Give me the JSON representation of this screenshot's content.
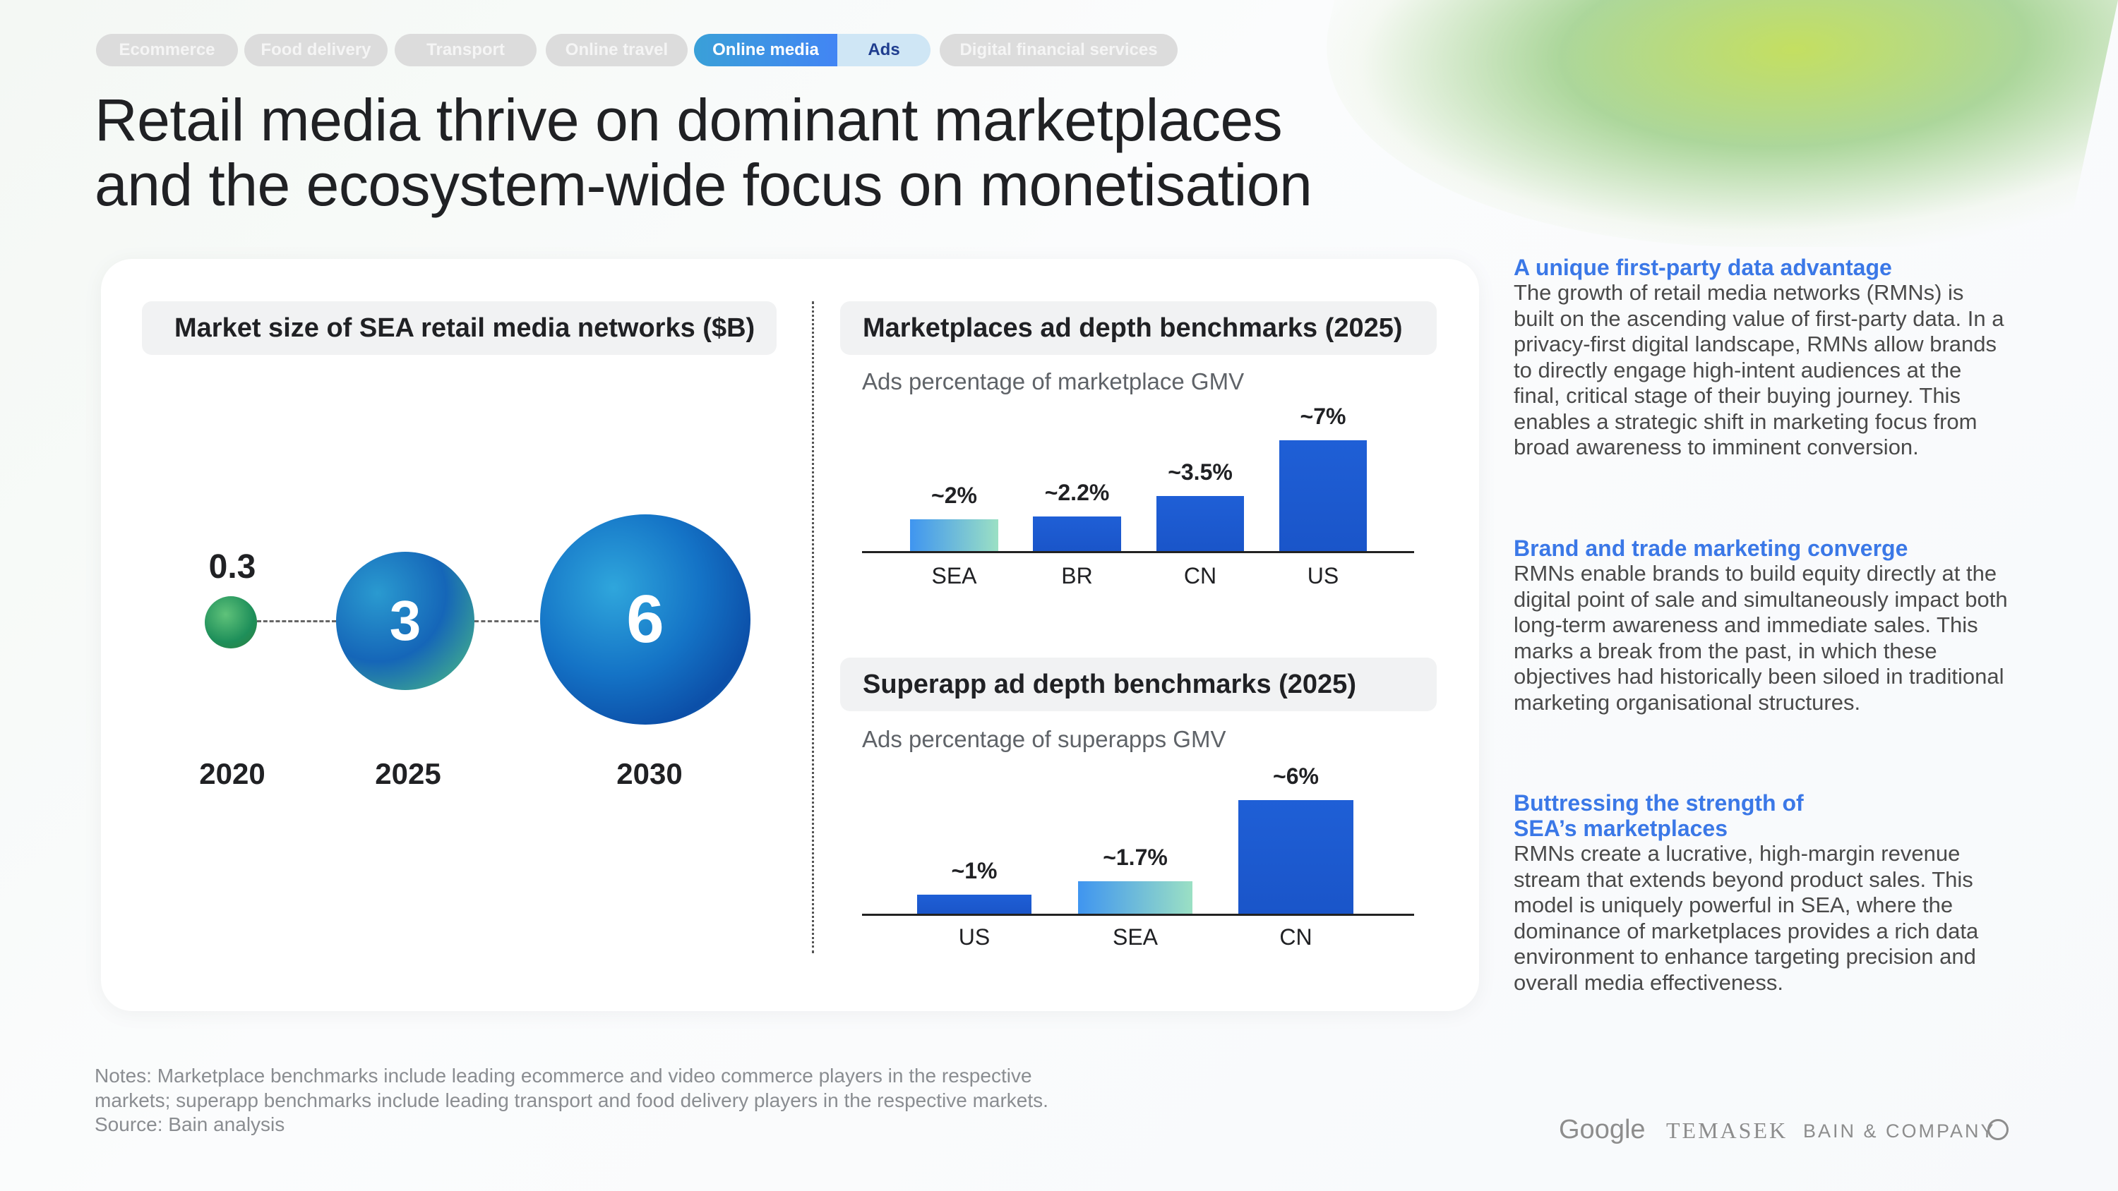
{
  "tabs": [
    {
      "label": "Ecommerce"
    },
    {
      "label": "Food delivery"
    },
    {
      "label": "Transport"
    },
    {
      "label": "Online travel"
    },
    {
      "label": "Online media",
      "active": true
    },
    {
      "label": "Ads",
      "subactive": true
    },
    {
      "label": "Digital financial services"
    }
  ],
  "title": {
    "line1": "Retail media thrive on dominant marketplaces",
    "line2": "and the ecosystem-wide focus on monetisation"
  },
  "market": {
    "title": "Market size of SEA retail media networks ($B)",
    "points": [
      {
        "year": "2020",
        "value": "0.3"
      },
      {
        "year": "2025",
        "value": "3"
      },
      {
        "year": "2030",
        "value": "6"
      }
    ]
  },
  "chart_data": [
    {
      "type": "bar",
      "title": "Marketplaces ad depth benchmarks (2025)",
      "subtitle": "Ads percentage of marketplace GMV",
      "categories": [
        "SEA",
        "BR",
        "CN",
        "US"
      ],
      "values": [
        2,
        2.2,
        3.5,
        7
      ],
      "labels": [
        "~2%",
        "~2.2%",
        "~3.5%",
        "~7%"
      ],
      "highlight": "SEA"
    },
    {
      "type": "bar",
      "title": "Superapp ad depth benchmarks (2025)",
      "subtitle": "Ads percentage of superapps GMV",
      "categories": [
        "US",
        "SEA",
        "CN"
      ],
      "values": [
        1,
        1.7,
        6
      ],
      "labels": [
        "~1%",
        "~1.7%",
        "~6%"
      ],
      "highlight": "SEA"
    }
  ],
  "sections": [
    {
      "heading": "A unique first-party data advantage",
      "body": "The growth of retail media networks (RMNs) is built on the ascending value of first-party data. In a privacy-first digital landscape, RMNs allow brands to directly engage high-intent audiences at the final, critical stage of their buying journey. This enables a strategic shift in marketing focus from broad awareness to imminent conversion."
    },
    {
      "heading": "Brand and trade marketing converge",
      "body": "RMNs enable brands to build equity directly at the digital point of sale and simultaneously impact both long-term awareness and immediate sales. This marks a break from the past, in which these objectives had historically been siloed in traditional marketing organisational structures."
    },
    {
      "heading": "Buttressing the strength of SEA’s marketplaces",
      "body": "RMNs create a lucrative, high-margin revenue stream that extends beyond product sales. This model is uniquely powerful in SEA, where the dominance of marketplaces provides a rich data environment to enhance targeting precision and overall media effectiveness."
    }
  ],
  "notes": {
    "line1": "Notes: Marketplace benchmarks include leading ecommerce and video commerce players in the respective",
    "line2": "markets; superapp benchmarks include leading transport and food delivery players in the respective markets.",
    "source": "Source: Bain analysis"
  },
  "logos": {
    "google": "Google",
    "temasek": "TEMASEK",
    "bain": "BAIN & COMPANY"
  },
  "colors": {
    "bar": "#1a55c9",
    "highlight_from": "#3f95f0",
    "highlight_to": "#9be0c4",
    "accent": "#3b78e7"
  }
}
